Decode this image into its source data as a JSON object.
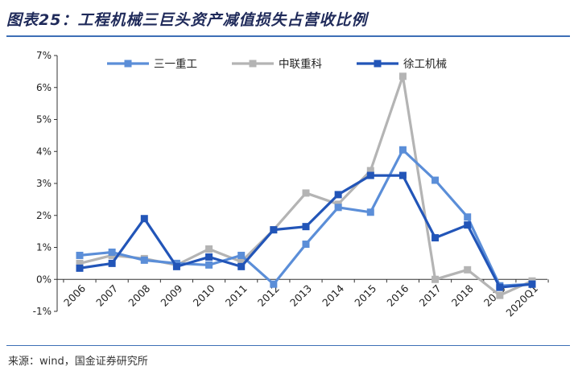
{
  "header": {
    "title": "图表25：工程机械三巨头资产减值损失占营收比例"
  },
  "footer": {
    "source": "来源：wind，国金证券研究所"
  },
  "chart_data": {
    "type": "line",
    "categories": [
      "2006",
      "2007",
      "2008",
      "2009",
      "2010",
      "2011",
      "2012",
      "2013",
      "2014",
      "2015",
      "2016",
      "2017",
      "2018",
      "2019",
      "2020Q1"
    ],
    "y_tick_labels": [
      "-1%",
      "0%",
      "1%",
      "2%",
      "3%",
      "4%",
      "5%",
      "6%",
      "7%"
    ],
    "ylim": [
      -1,
      7
    ],
    "y_unit": "%",
    "grid": false,
    "legend_position": "top",
    "series": [
      {
        "name": "三一重工",
        "color": "#5b8ed8",
        "values": [
          0.75,
          0.85,
          0.6,
          0.5,
          0.45,
          0.75,
          -0.15,
          1.1,
          2.25,
          2.1,
          4.05,
          3.1,
          1.95,
          -0.2,
          -0.15
        ]
      },
      {
        "name": "中联重科",
        "color": "#b4b4b4",
        "values": [
          0.5,
          0.75,
          0.65,
          0.45,
          0.95,
          0.55,
          1.55,
          2.7,
          2.35,
          3.4,
          6.35,
          0.0,
          0.3,
          -0.5,
          -0.05
        ]
      },
      {
        "name": "徐工机械",
        "color": "#2255b8",
        "values": [
          0.35,
          0.5,
          1.9,
          0.4,
          0.7,
          0.4,
          1.55,
          1.65,
          2.65,
          3.25,
          3.25,
          1.3,
          1.7,
          -0.25,
          -0.15
        ]
      }
    ]
  }
}
